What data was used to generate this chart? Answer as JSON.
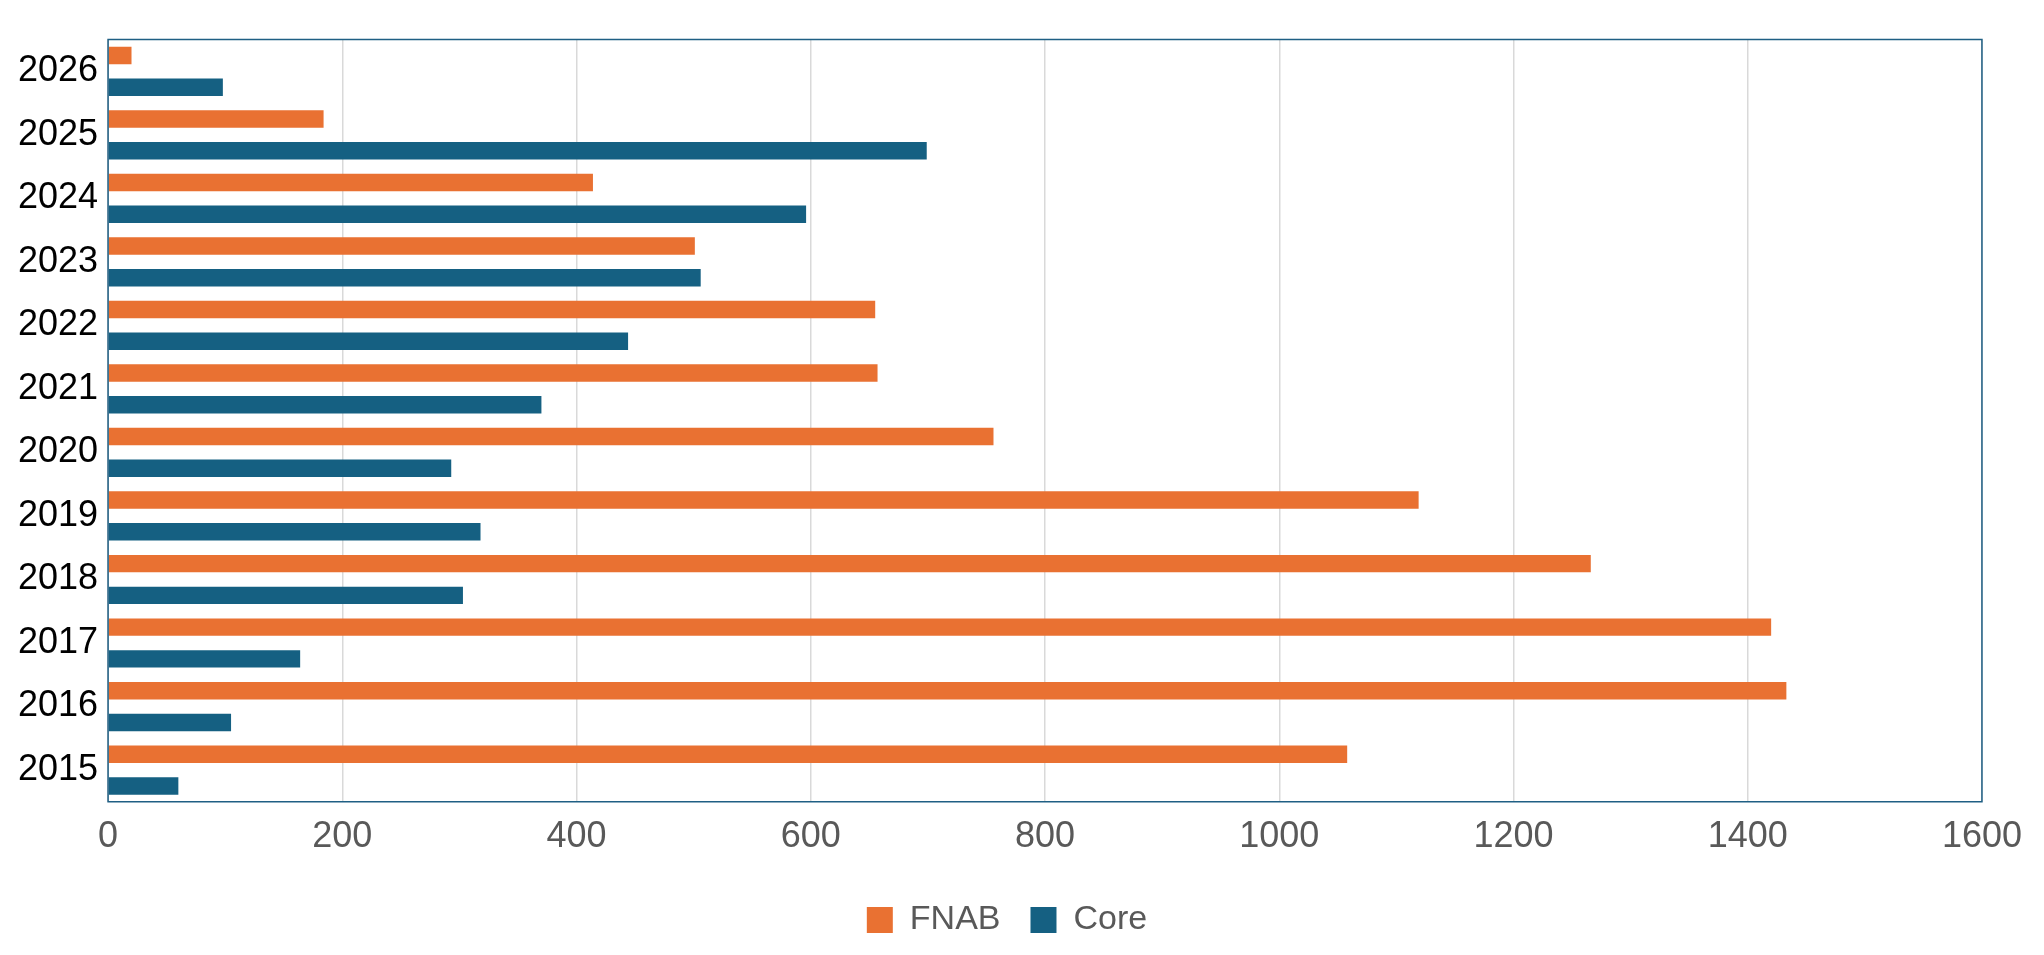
{
  "chart_data": {
    "type": "bar",
    "orientation": "horizontal",
    "categories": [
      "2026",
      "2025",
      "2024",
      "2023",
      "2022",
      "2021",
      "2020",
      "2019",
      "2018",
      "2017",
      "2016",
      "2015"
    ],
    "series": [
      {
        "name": "FNAB",
        "color": "#e97132",
        "values": [
          20,
          184,
          414,
          501,
          655,
          657,
          756,
          1119,
          1266,
          1420,
          1433,
          1058
        ]
      },
      {
        "name": "Core",
        "color": "#156082",
        "values": [
          98,
          699,
          596,
          506,
          444,
          370,
          293,
          318,
          303,
          164,
          105,
          60
        ]
      }
    ],
    "xlim": [
      0,
      1600
    ],
    "xticks": [
      0,
      200,
      400,
      600,
      800,
      1000,
      1200,
      1400,
      1600
    ],
    "grid": "x",
    "legend": "bottom"
  }
}
